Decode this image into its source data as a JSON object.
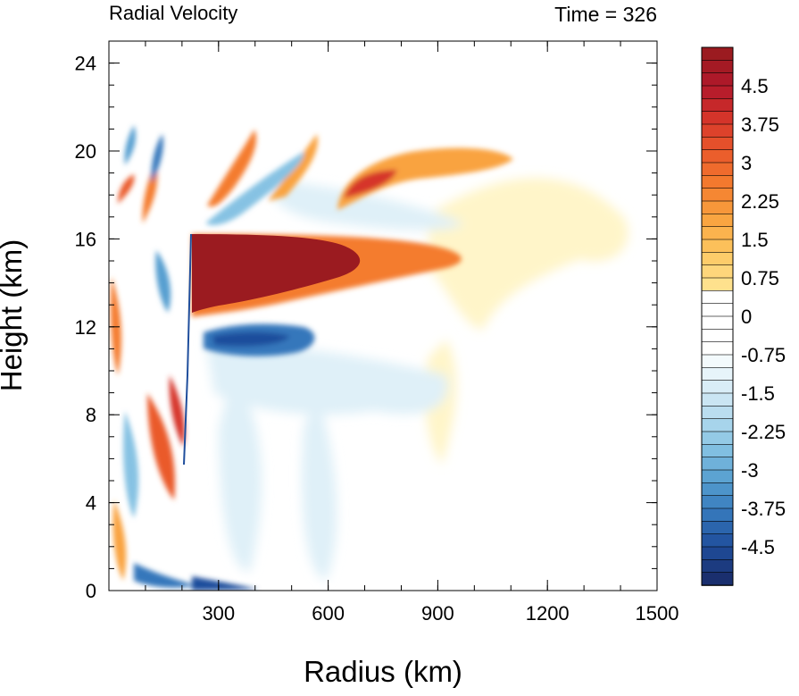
{
  "chart_data": {
    "type": "heatmap",
    "title_left": "Radial Velocity",
    "title_right": "Time = 326",
    "xlabel": "Radius (km)",
    "ylabel": "Height (km)",
    "xlim": [
      0,
      1500
    ],
    "ylim": [
      0,
      25
    ],
    "x_ticks": [
      300,
      600,
      900,
      1200,
      1500
    ],
    "y_ticks": [
      0,
      4,
      8,
      12,
      16,
      20,
      24
    ],
    "colorbar": {
      "min": -5.25,
      "max": 5.25,
      "step": 0.25,
      "labels": [
        "4.5",
        "3.75",
        "3",
        "2.25",
        "1.5",
        "0.75",
        "0",
        "-0.75",
        "-1.5",
        "-2.25",
        "-3",
        "-3.75",
        "-4.5"
      ],
      "label_values": [
        4.5,
        3.75,
        3,
        2.25,
        1.5,
        0.75,
        0,
        -0.75,
        -1.5,
        -2.25,
        -3,
        -3.75,
        -4.5
      ],
      "colors": [
        "#9b1b20",
        "#b2182b",
        "#d6352a",
        "#ea5a2c",
        "#f47c2e",
        "#f9a33f",
        "#fdc55f",
        "#fee08b",
        "#fff5c9",
        "#ffffff",
        "#dff0f8",
        "#b7dcee",
        "#86c2e3",
        "#569fd0",
        "#3577bb",
        "#1f4e9c",
        "#1a2f6e"
      ]
    },
    "features": [
      {
        "type": "positive_core",
        "r": [
          230,
          950
        ],
        "z": [
          13,
          16.3
        ],
        "peak": 5.25
      },
      {
        "type": "positive_band",
        "r": [
          620,
          1100
        ],
        "z": [
          17.5,
          20.5
        ],
        "peak": 3.75
      },
      {
        "type": "negative_band",
        "r": [
          230,
          700
        ],
        "z": [
          10.5,
          12.5
        ],
        "peak": -4.5
      },
      {
        "type": "alternating_bands_inner",
        "r": [
          0,
          230
        ],
        "z": [
          0,
          22
        ],
        "peak": 4.5
      }
    ]
  }
}
